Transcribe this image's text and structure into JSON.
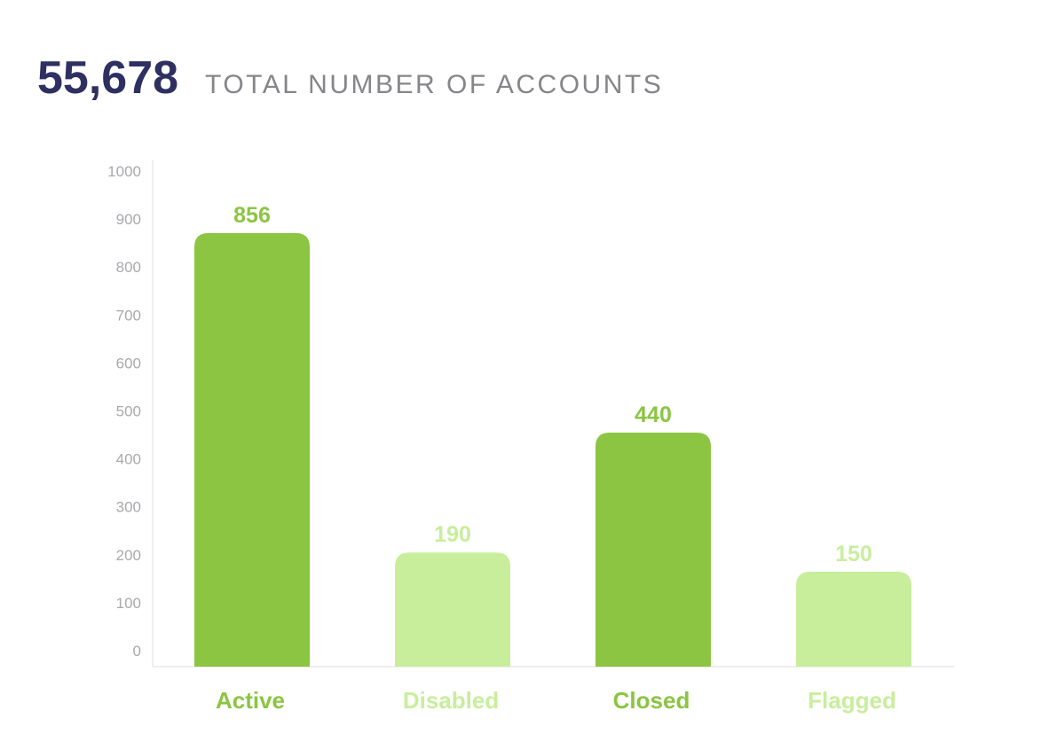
{
  "header": {
    "total_value": "55,678",
    "total_label": "TOTAL NUMBER OF ACCOUNTS"
  },
  "colors": {
    "dark_green": "#8bc541",
    "light_green": "#c8ee9c",
    "title_navy": "#2e3062",
    "label_gray": "#85858a"
  },
  "chart_data": {
    "type": "bar",
    "categories": [
      "Active",
      "Disabled",
      "Closed",
      "Flagged"
    ],
    "values": [
      856,
      190,
      440,
      150
    ],
    "bar_shades": [
      "dark",
      "light",
      "dark",
      "light"
    ],
    "ylim": [
      0,
      1000
    ],
    "yticks": [
      0,
      100,
      200,
      300,
      400,
      500,
      600,
      700,
      800,
      900,
      1000
    ],
    "grid": false,
    "title": "",
    "xlabel": "",
    "ylabel": ""
  }
}
